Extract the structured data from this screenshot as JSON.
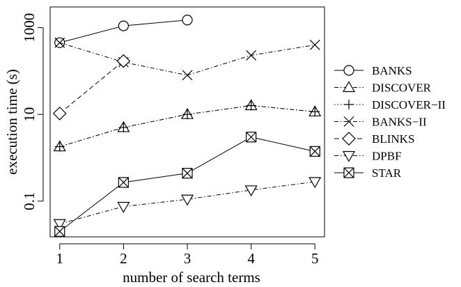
{
  "chart_data": {
    "type": "line",
    "title": "",
    "xlabel": "number of search terms",
    "ylabel": "execution time (s)",
    "yscale": "log",
    "ylim": [
      0.015,
      3000
    ],
    "xlim": [
      0.85,
      5.15
    ],
    "xticks": [
      1,
      2,
      3,
      4,
      5
    ],
    "yticks": [
      0.1,
      10,
      1000
    ],
    "ytick_labels": [
      "0.1",
      "10",
      "1000"
    ],
    "x": [
      1,
      2,
      3,
      4,
      5
    ],
    "grid": false,
    "legend_position": "right",
    "series": [
      {
        "name": "BANKS",
        "marker": "circle",
        "dash": "solid",
        "x": [
          1,
          2,
          3
        ],
        "values": [
          450,
          1100,
          1500
        ]
      },
      {
        "name": "DISCOVER",
        "marker": "triangle-up",
        "dash": "dashdot",
        "x": [
          1,
          2,
          3,
          4,
          5
        ],
        "values": [
          1.8,
          5.0,
          10.0,
          16.0,
          11.5
        ]
      },
      {
        "name": "DISCOVER−II",
        "marker": "plus",
        "dash": "dotted",
        "x": [
          1,
          2,
          3,
          4,
          5
        ],
        "values": [
          1.8,
          5.0,
          10.0,
          16.0,
          11.5
        ]
      },
      {
        "name": "BANKS−II",
        "marker": "cross",
        "dash": "dashdot",
        "x": [
          1,
          2,
          3,
          4,
          5
        ],
        "values": [
          450,
          160,
          80,
          230,
          400
        ]
      },
      {
        "name": "BLINKS",
        "marker": "diamond",
        "dash": "dashed",
        "x": [
          1,
          2
        ],
        "values": [
          10.5,
          170
        ]
      },
      {
        "name": "DPBF",
        "marker": "triangle-down",
        "dash": "dashdot",
        "x": [
          1,
          2,
          3,
          4,
          5
        ],
        "values": [
          0.03,
          0.075,
          0.11,
          0.18,
          0.28
        ]
      },
      {
        "name": "STAR",
        "marker": "boxx",
        "dash": "solid",
        "x": [
          1,
          2,
          3,
          4,
          5
        ],
        "values": [
          0.02,
          0.27,
          0.44,
          3.0,
          1.4
        ]
      }
    ]
  }
}
